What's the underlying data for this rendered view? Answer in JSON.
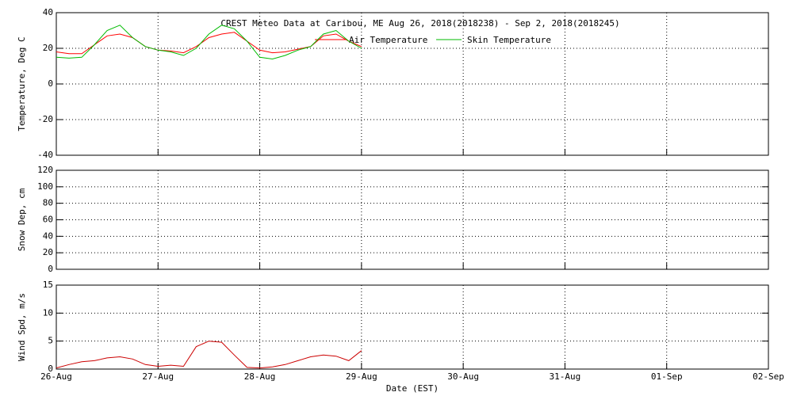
{
  "chart_data": [
    {
      "type": "line",
      "title": "CREST Meteo Data at Caribou, ME   Aug 26, 2018(2018238) - Sep  2, 2018(2018245)",
      "ylabel": "Temperature, Deg C",
      "xlim": [
        0,
        7
      ],
      "ylim": [
        -40,
        40
      ],
      "yticks": [
        -40,
        -20,
        0,
        20,
        40
      ],
      "grid": true,
      "x": [
        0,
        0.125,
        0.25,
        0.375,
        0.5,
        0.625,
        0.75,
        0.875,
        1,
        1.125,
        1.25,
        1.375,
        1.5,
        1.625,
        1.75,
        1.875,
        2,
        2.125,
        2.25,
        2.375,
        2.5,
        2.625,
        2.75,
        2.875,
        3
      ],
      "series": [
        {
          "name": "Air Temperature",
          "color": "#ff0000",
          "values": [
            18,
            17,
            17,
            22,
            27,
            28,
            26,
            21,
            19,
            18.5,
            17.5,
            21,
            26,
            28,
            29,
            24,
            19,
            17.5,
            18,
            19.5,
            21,
            27,
            28,
            24,
            21
          ]
        },
        {
          "name": "Skin Temperature",
          "color": "#00bb00",
          "values": [
            15,
            14.5,
            15,
            22,
            30,
            33,
            26,
            21,
            19,
            18,
            16,
            20,
            28,
            33,
            31,
            24,
            15,
            14,
            16,
            19,
            21,
            28,
            30,
            24,
            20
          ]
        }
      ]
    },
    {
      "type": "line",
      "ylabel": "Snow Dep, cm",
      "xlim": [
        0,
        7
      ],
      "ylim": [
        0,
        120
      ],
      "yticks": [
        0,
        20,
        40,
        60,
        80,
        100,
        120
      ],
      "grid": true
    },
    {
      "type": "line",
      "ylabel": "Wind Spd, m/s",
      "xlabel": "Date (EST)",
      "xlim": [
        0,
        7
      ],
      "ylim": [
        0,
        15
      ],
      "yticks": [
        0,
        5,
        10,
        15
      ],
      "grid": true,
      "xticks": [
        {
          "value": 0,
          "label": "26-Aug"
        },
        {
          "value": 1,
          "label": "27-Aug"
        },
        {
          "value": 2,
          "label": "28-Aug"
        },
        {
          "value": 3,
          "label": "29-Aug"
        },
        {
          "value": 4,
          "label": "30-Aug"
        },
        {
          "value": 5,
          "label": "31-Aug"
        },
        {
          "value": 6,
          "label": "01-Sep"
        },
        {
          "value": 7,
          "label": "02-Sep"
        }
      ],
      "x": [
        0,
        0.125,
        0.25,
        0.375,
        0.5,
        0.625,
        0.75,
        0.875,
        1,
        1.125,
        1.25,
        1.375,
        1.5,
        1.625,
        1.75,
        1.875,
        2,
        2.125,
        2.25,
        2.375,
        2.5,
        2.625,
        2.75,
        2.875,
        3
      ],
      "series": [
        {
          "color": "#cc0000",
          "values": [
            0.2,
            0.8,
            1.3,
            1.5,
            2,
            2.2,
            1.8,
            0.8,
            0.5,
            0.7,
            0.5,
            4,
            5,
            4.8,
            2.5,
            0.3,
            0.2,
            0.4,
            0.8,
            1.5,
            2.2,
            2.5,
            2.3,
            1.5,
            3.3
          ]
        }
      ]
    }
  ]
}
